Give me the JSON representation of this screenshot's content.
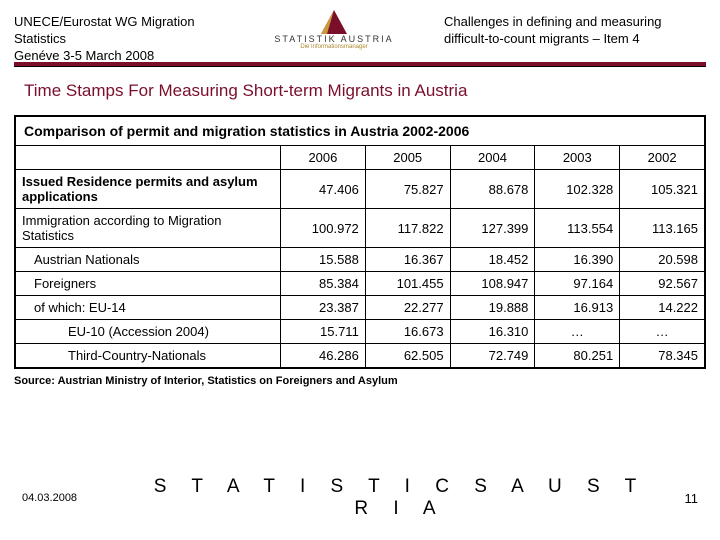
{
  "header": {
    "left_line1": "UNECE/Eurostat WG Migration Statistics",
    "left_line2": "Genéve 3-5 March 2008",
    "right_line1": "Challenges in defining and measuring",
    "right_line2": "difficult-to-count migrants – Item 4",
    "logo_text": "STATISTIK AUSTRIA",
    "logo_sub": "Die Informationsmanager"
  },
  "title": "Time Stamps For Measuring Short-term Migrants in Austria",
  "table": {
    "caption": "Comparison of permit and migration statistics in Austria 2002-2006",
    "years": [
      "2006",
      "2005",
      "2004",
      "2003",
      "2002"
    ],
    "rows": [
      {
        "label": "Issued Residence permits and asylum applications",
        "bold": true,
        "indent": 0,
        "values": [
          "47.406",
          "75.827",
          "88.678",
          "102.328",
          "105.321"
        ]
      },
      {
        "label": "Immigration according to Migration Statistics",
        "bold": false,
        "indent": 0,
        "values": [
          "100.972",
          "117.822",
          "127.399",
          "113.554",
          "113.165"
        ]
      },
      {
        "label": "Austrian Nationals",
        "bold": false,
        "indent": 1,
        "values": [
          "15.588",
          "16.367",
          "18.452",
          "16.390",
          "20.598"
        ]
      },
      {
        "label": "Foreigners",
        "bold": false,
        "indent": 1,
        "values": [
          "85.384",
          "101.455",
          "108.947",
          "97.164",
          "92.567"
        ]
      },
      {
        "label": "of which: EU-14",
        "bold": false,
        "indent": 1,
        "values": [
          "23.387",
          "22.277",
          "19.888",
          "16.913",
          "14.222"
        ]
      },
      {
        "label": "EU-10 (Accession 2004)",
        "bold": false,
        "indent": 2,
        "values": [
          "15.711",
          "16.673",
          "16.310",
          "…",
          "…"
        ],
        "center_last": true
      },
      {
        "label": "Third-Country-Nationals",
        "bold": false,
        "indent": 2,
        "values": [
          "46.286",
          "62.505",
          "72.749",
          "80.251",
          "78.345"
        ]
      }
    ]
  },
  "source": "Source: Austrian Ministry of Interior, Statistics on Foreigners and Asylum",
  "footer": {
    "date": "04.03.2008",
    "brand": "S T A T I S T I C S   A U S T R I A",
    "page": "11"
  },
  "colors": {
    "accent": "#7a0f2b",
    "text": "#000000",
    "bg": "#ffffff"
  }
}
